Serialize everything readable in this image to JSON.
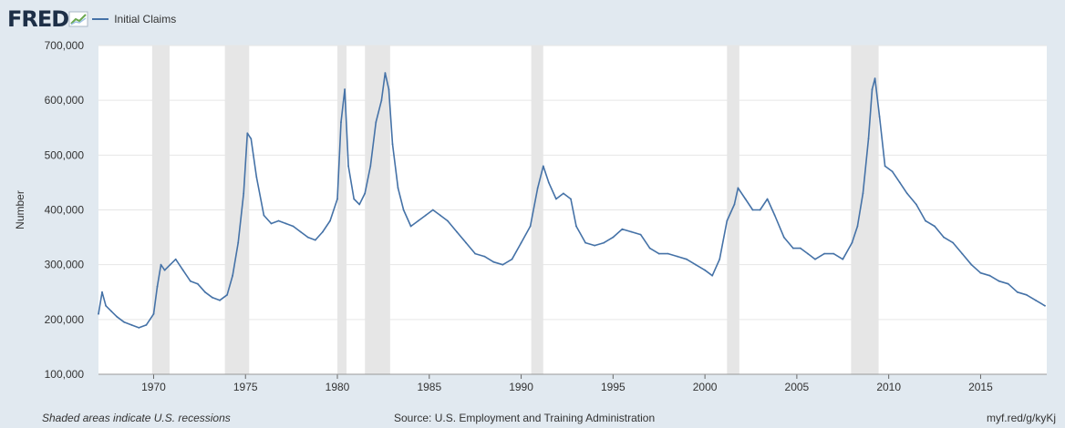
{
  "header": {
    "logo_text": "FRED",
    "legend_label": "Initial Claims"
  },
  "colors": {
    "line": "#4572a7",
    "recession": "#e6e6e6",
    "plot_bg": "#ffffff",
    "page_bg": "#e1e9f0",
    "grid": "#e6e6e6"
  },
  "footer": {
    "note": "Shaded areas indicate U.S. recessions",
    "source": "Source: U.S. Employment and Training Administration",
    "link": "myf.red/g/kyKj"
  },
  "chart_data": {
    "type": "line",
    "title": "",
    "xlabel": "",
    "ylabel": "Number",
    "xlim": [
      1967.0,
      2018.6
    ],
    "ylim": [
      100000,
      700000
    ],
    "grid": true,
    "legend_position": "top-left",
    "x_ticks": [
      1970,
      1975,
      1980,
      1985,
      1990,
      1995,
      2000,
      2005,
      2010,
      2015
    ],
    "y_ticks": [
      100000,
      200000,
      300000,
      400000,
      500000,
      600000,
      700000
    ],
    "y_tick_labels": [
      "100,000",
      "200,000",
      "300,000",
      "400,000",
      "500,000",
      "600,000",
      "700,000"
    ],
    "recessions": [
      [
        1969.92,
        1970.87
      ],
      [
        1973.88,
        1975.2
      ],
      [
        1980.0,
        1980.5
      ],
      [
        1981.5,
        1982.87
      ],
      [
        1990.55,
        1991.2
      ],
      [
        2001.2,
        2001.87
      ],
      [
        2007.95,
        2009.45
      ]
    ],
    "series": [
      {
        "name": "Initial Claims",
        "x": [
          1967.0,
          1967.2,
          1967.4,
          1967.7,
          1968.0,
          1968.4,
          1968.8,
          1969.2,
          1969.6,
          1970.0,
          1970.2,
          1970.4,
          1970.6,
          1970.9,
          1971.2,
          1971.6,
          1972.0,
          1972.4,
          1972.8,
          1973.2,
          1973.6,
          1974.0,
          1974.3,
          1974.6,
          1974.9,
          1975.1,
          1975.3,
          1975.6,
          1976.0,
          1976.4,
          1976.8,
          1977.2,
          1977.6,
          1978.0,
          1978.4,
          1978.8,
          1979.2,
          1979.6,
          1980.0,
          1980.2,
          1980.4,
          1980.6,
          1980.9,
          1981.2,
          1981.5,
          1981.8,
          1982.1,
          1982.4,
          1982.6,
          1982.8,
          1983.0,
          1983.3,
          1983.6,
          1984.0,
          1984.4,
          1984.8,
          1985.2,
          1985.6,
          1986.0,
          1986.5,
          1987.0,
          1987.5,
          1988.0,
          1988.5,
          1989.0,
          1989.5,
          1990.0,
          1990.5,
          1990.9,
          1991.2,
          1991.5,
          1991.9,
          1992.3,
          1992.7,
          1993.0,
          1993.5,
          1994.0,
          1994.5,
          1995.0,
          1995.5,
          1996.0,
          1996.5,
          1997.0,
          1997.5,
          1998.0,
          1998.5,
          1999.0,
          1999.5,
          2000.0,
          2000.4,
          2000.8,
          2001.2,
          2001.6,
          2001.8,
          2002.2,
          2002.6,
          2003.0,
          2003.4,
          2003.8,
          2004.3,
          2004.8,
          2005.2,
          2005.6,
          2006.0,
          2006.5,
          2007.0,
          2007.5,
          2008.0,
          2008.3,
          2008.6,
          2008.9,
          2009.1,
          2009.25,
          2009.5,
          2009.8,
          2010.2,
          2010.6,
          2011.0,
          2011.5,
          2012.0,
          2012.5,
          2013.0,
          2013.5,
          2014.0,
          2014.5,
          2015.0,
          2015.5,
          2016.0,
          2016.5,
          2017.0,
          2017.5,
          2018.0,
          2018.5
        ],
        "values": [
          210000,
          250000,
          225000,
          215000,
          205000,
          195000,
          190000,
          185000,
          190000,
          210000,
          260000,
          300000,
          290000,
          300000,
          310000,
          290000,
          270000,
          265000,
          250000,
          240000,
          235000,
          245000,
          280000,
          340000,
          430000,
          540000,
          530000,
          460000,
          390000,
          375000,
          380000,
          375000,
          370000,
          360000,
          350000,
          345000,
          360000,
          380000,
          420000,
          560000,
          620000,
          480000,
          420000,
          410000,
          430000,
          480000,
          560000,
          600000,
          650000,
          620000,
          520000,
          440000,
          400000,
          370000,
          380000,
          390000,
          400000,
          390000,
          380000,
          360000,
          340000,
          320000,
          315000,
          305000,
          300000,
          310000,
          340000,
          370000,
          440000,
          480000,
          450000,
          420000,
          430000,
          420000,
          370000,
          340000,
          335000,
          340000,
          350000,
          365000,
          360000,
          355000,
          330000,
          320000,
          320000,
          315000,
          310000,
          300000,
          290000,
          280000,
          310000,
          380000,
          410000,
          440000,
          420000,
          400000,
          400000,
          420000,
          390000,
          350000,
          330000,
          330000,
          320000,
          310000,
          320000,
          320000,
          310000,
          340000,
          370000,
          430000,
          530000,
          620000,
          640000,
          570000,
          480000,
          470000,
          450000,
          430000,
          410000,
          380000,
          370000,
          350000,
          340000,
          320000,
          300000,
          285000,
          280000,
          270000,
          265000,
          250000,
          245000,
          235000,
          225000
        ]
      }
    ]
  }
}
